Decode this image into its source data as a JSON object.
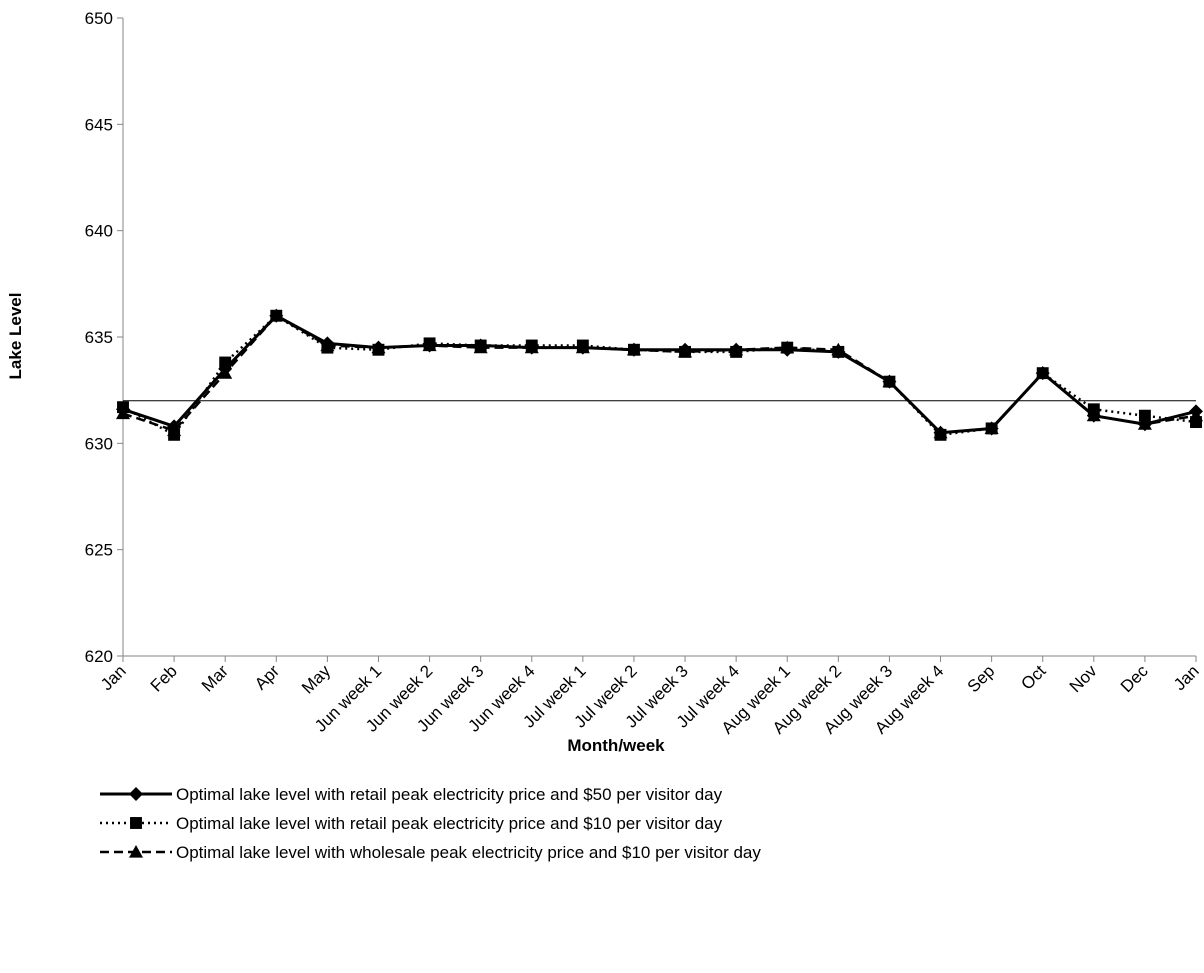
{
  "chart_data": {
    "type": "line",
    "title": "",
    "xlabel": "Month/week",
    "ylabel": "Lake Level",
    "ylim": [
      620,
      650
    ],
    "yticks": [
      620,
      625,
      630,
      635,
      640,
      645,
      650
    ],
    "grid": false,
    "legend_position": "bottom",
    "reference_line": {
      "y": 632
    },
    "categories": [
      "Jan",
      "Feb",
      "Mar",
      "Apr",
      "May",
      "Jun week 1",
      "Jun week 2",
      "Jun week 3",
      "Jun week 4",
      "Jul week 1",
      "Jul week 2",
      "Jul week 3",
      "Jul week 4",
      "Aug week 1",
      "Aug week 2",
      "Aug week 3",
      "Aug week 4",
      "Sep",
      "Oct",
      "Nov",
      "Dec",
      "Jan"
    ],
    "series": [
      {
        "name": "Optimal lake level with retail peak electricity price and $50 per visitor day",
        "line_style": "solid",
        "marker": "diamond",
        "color": "#000000",
        "values": [
          631.6,
          630.8,
          633.5,
          636.0,
          634.7,
          634.5,
          634.6,
          634.6,
          634.5,
          634.5,
          634.4,
          634.4,
          634.4,
          634.4,
          634.3,
          632.9,
          630.5,
          630.7,
          633.3,
          631.3,
          630.9,
          631.5
        ]
      },
      {
        "name": "Optimal lake level with retail peak electricity price and $10 per visitor day",
        "line_style": "dotted",
        "marker": "square",
        "color": "#000000",
        "values": [
          631.7,
          630.4,
          633.8,
          636.0,
          634.5,
          634.4,
          634.7,
          634.6,
          634.6,
          634.6,
          634.4,
          634.3,
          634.3,
          634.5,
          634.3,
          632.9,
          630.4,
          630.7,
          633.3,
          631.6,
          631.3,
          631.0
        ]
      },
      {
        "name": "Optimal lake level with wholesale peak electricity price and $10 per visitor day",
        "line_style": "dashed",
        "marker": "triangle",
        "color": "#000000",
        "values": [
          631.4,
          630.6,
          633.3,
          636.0,
          634.6,
          634.5,
          634.6,
          634.5,
          634.5,
          634.5,
          634.4,
          634.3,
          634.4,
          634.5,
          634.4,
          632.9,
          630.5,
          630.7,
          633.3,
          631.3,
          630.9,
          631.3
        ]
      }
    ]
  }
}
